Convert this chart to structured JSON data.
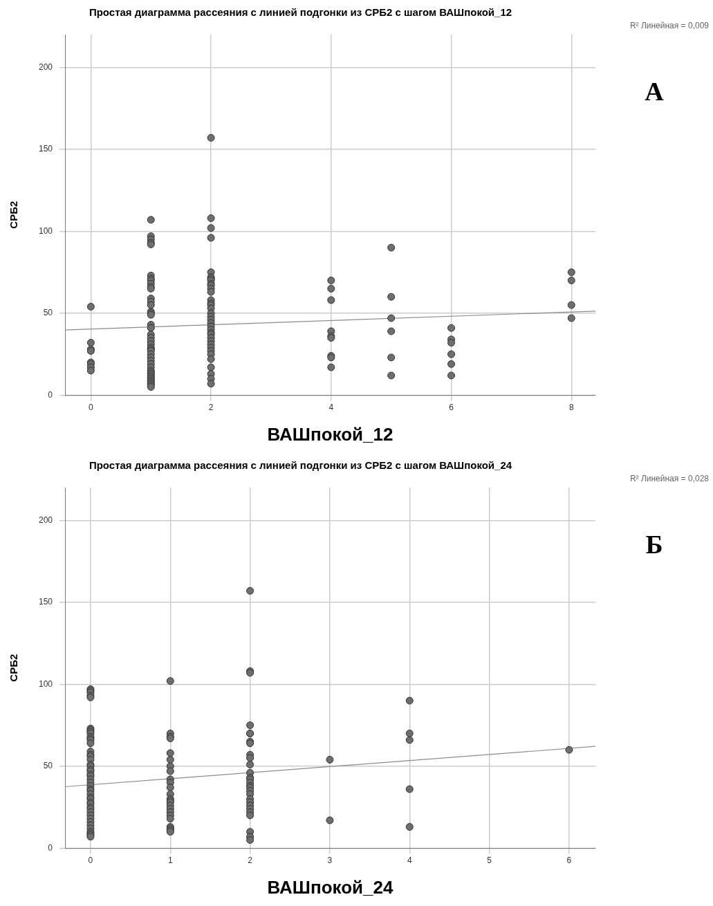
{
  "chart_data": [
    {
      "type": "scatter",
      "title": "Простая диаграмма рассеяния с линией подгонки из СРБ2 с шагом ВАШпокой_12",
      "xlabel": "ВАШпокой_12",
      "ylabel": "СРБ2",
      "xlim": [
        -0.43,
        8.4
      ],
      "xticks": [
        0,
        2,
        4,
        6,
        8
      ],
      "ylim": [
        0,
        220
      ],
      "yticks": [
        0,
        50,
        100,
        150,
        200
      ],
      "grid": true,
      "marker": "circle",
      "legend": false,
      "annotations": [
        "R² Линейная = 0,009",
        "А"
      ],
      "series": [
        {
          "type": "scatter",
          "color": "#6e6e6e",
          "x": [
            0,
            0,
            0,
            0,
            0,
            0,
            0,
            0,
            1,
            1,
            1,
            1,
            1,
            1,
            1,
            1,
            1,
            1,
            1,
            1,
            1,
            1,
            1,
            1,
            1,
            1,
            1,
            1,
            1,
            1,
            1,
            1,
            1,
            1,
            1,
            1,
            1,
            1,
            1,
            1,
            1,
            1,
            1,
            1,
            1,
            1,
            1,
            1,
            1,
            1,
            2,
            2,
            2,
            2,
            2,
            2,
            2,
            2,
            2,
            2,
            2,
            2,
            2,
            2,
            2,
            2,
            2,
            2,
            2,
            2,
            2,
            2,
            2,
            2,
            2,
            2,
            2,
            2,
            2,
            2,
            2,
            2,
            2,
            2,
            2,
            4,
            4,
            4,
            4,
            4,
            4,
            4,
            4,
            4,
            5,
            5,
            5,
            5,
            5,
            5,
            6,
            6,
            6,
            6,
            6,
            6,
            8,
            8,
            8,
            8
          ],
          "values": [
            54,
            32,
            28,
            27,
            20,
            19,
            17,
            15,
            107,
            97,
            95,
            93,
            92,
            73,
            71,
            70,
            68,
            66,
            65,
            59,
            57,
            55,
            51,
            50,
            49,
            43,
            41,
            37,
            35,
            33,
            31,
            29,
            28,
            27,
            25,
            23,
            21,
            19,
            17,
            15,
            14,
            13,
            12,
            11,
            10,
            9,
            8,
            7,
            6,
            5,
            157,
            108,
            102,
            96,
            75,
            72,
            71,
            70,
            68,
            67,
            65,
            63,
            58,
            56,
            55,
            53,
            50,
            48,
            46,
            44,
            42,
            40,
            38,
            37,
            35,
            33,
            31,
            29,
            27,
            25,
            22,
            17,
            13,
            10,
            7,
            70,
            65,
            58,
            39,
            36,
            35,
            24,
            23,
            17,
            90,
            60,
            47,
            39,
            23,
            12,
            41,
            34,
            32,
            25,
            19,
            12,
            75,
            70,
            55,
            47
          ]
        },
        {
          "type": "line",
          "color": "#8c8c8c",
          "marker": "none",
          "x": [
            -0.43,
            8.4
          ],
          "values": [
            39.8,
            51.3
          ]
        }
      ]
    },
    {
      "type": "scatter",
      "title": "Простая диаграмма рассеяния с линией подгонки из СРБ2 с шагом ВАШпокой_24",
      "xlabel": "ВАШпокой_24",
      "ylabel": "СРБ2",
      "xlim": [
        -0.32,
        6.33
      ],
      "xticks": [
        0,
        1,
        2,
        3,
        4,
        5,
        6
      ],
      "ylim": [
        0,
        220
      ],
      "yticks": [
        0,
        50,
        100,
        150,
        200
      ],
      "grid": true,
      "marker": "circle",
      "legend": false,
      "annotations": [
        "R² Линейная = 0,028",
        "Б"
      ],
      "series": [
        {
          "type": "scatter",
          "color": "#6e6e6e",
          "x": [
            0,
            0,
            0,
            0,
            0,
            0,
            0,
            0,
            0,
            0,
            0,
            0,
            0,
            0,
            0,
            0,
            0,
            0,
            0,
            0,
            0,
            0,
            0,
            0,
            0,
            0,
            0,
            0,
            0,
            0,
            0,
            0,
            0,
            0,
            0,
            0,
            0,
            0,
            0,
            0,
            0,
            0,
            0,
            0,
            0,
            1,
            1,
            1,
            1,
            1,
            1,
            1,
            1,
            1,
            1,
            1,
            1,
            1,
            1,
            1,
            1,
            1,
            1,
            1,
            1,
            1,
            1,
            1,
            1,
            2,
            2,
            2,
            2,
            2,
            2,
            2,
            2,
            2,
            2,
            2,
            2,
            2,
            2,
            2,
            2,
            2,
            2,
            2,
            2,
            2,
            2,
            2,
            2,
            2,
            2,
            2,
            2,
            3,
            3,
            4,
            4,
            4,
            4,
            4,
            6
          ],
          "values": [
            97,
            96,
            95,
            93,
            92,
            73,
            72,
            71,
            70,
            68,
            67,
            66,
            64,
            59,
            57,
            56,
            54,
            51,
            50,
            48,
            47,
            45,
            44,
            42,
            40,
            38,
            36,
            35,
            33,
            31,
            30,
            28,
            27,
            25,
            24,
            22,
            20,
            18,
            16,
            14,
            12,
            10,
            9,
            8,
            7,
            102,
            70,
            68,
            67,
            58,
            54,
            50,
            47,
            42,
            40,
            37,
            33,
            30,
            29,
            28,
            26,
            24,
            22,
            20,
            18,
            13,
            12,
            11,
            10,
            157,
            108,
            107,
            75,
            70,
            70,
            65,
            64,
            57,
            55,
            51,
            46,
            43,
            42,
            40,
            38,
            37,
            35,
            33,
            30,
            28,
            26,
            24,
            22,
            20,
            10,
            7,
            5,
            54,
            17,
            90,
            70,
            66,
            36,
            13,
            60
          ]
        },
        {
          "type": "line",
          "color": "#8c8c8c",
          "marker": "none",
          "x": [
            -0.32,
            6.33
          ],
          "values": [
            37.5,
            62.1
          ]
        }
      ]
    }
  ]
}
